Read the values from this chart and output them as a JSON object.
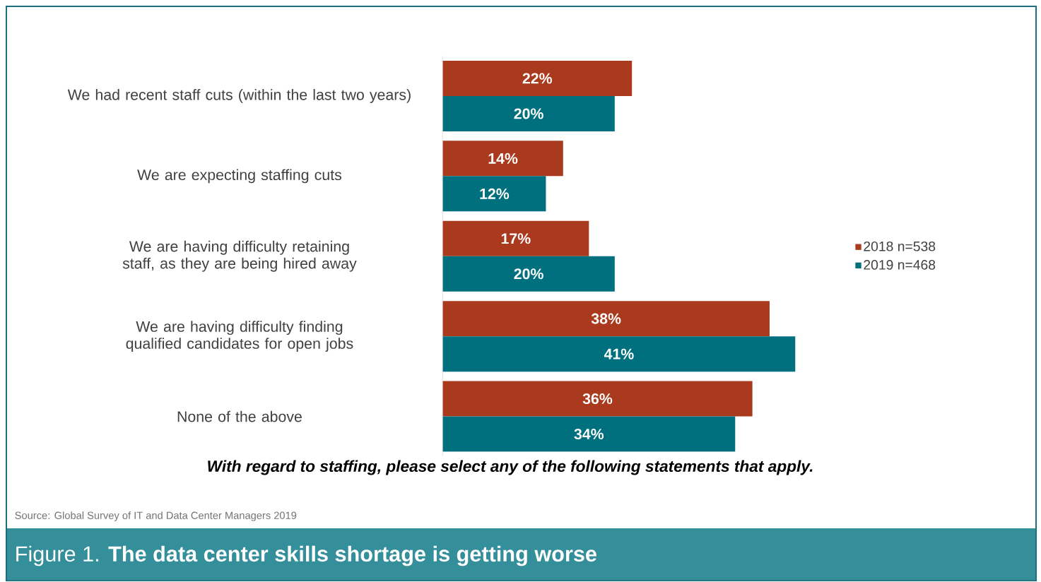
{
  "chart_data": {
    "type": "bar",
    "orientation": "horizontal",
    "title": "Figure 1. **The data center skills shortage is getting worse**",
    "xlabel": "With regard to staffing, please select any of the following statements that apply.",
    "annotations": [
      "Source: Global Survey of IT and Data Center Managers 2019"
    ],
    "categories": [
      "We had recent staff cuts (within the last two years)",
      "We are expecting staffing cuts",
      "We are having difficulty retaining staff, as they are being hired away",
      "We are having difficulty finding qualified candidates for open jobs",
      "None of the above"
    ],
    "series": [
      {
        "name": "2018 n=538",
        "color": "#a93a1e",
        "values": [
          22,
          14,
          17,
          38,
          36
        ],
        "value_labels": [
          "22%",
          "14%",
          "17%",
          "38%",
          "36%"
        ]
      },
      {
        "name": "2019 n=468",
        "color": "#00707f",
        "values": [
          20,
          12,
          20,
          41,
          34
        ],
        "value_labels": [
          "20%",
          "12%",
          "20%",
          "41%",
          "34%"
        ]
      }
    ],
    "legend": "right"
  }
}
